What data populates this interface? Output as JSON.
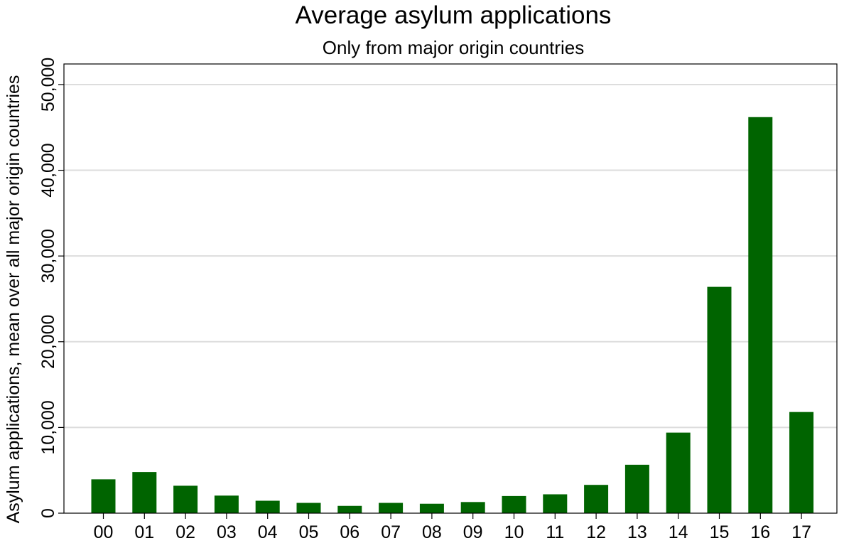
{
  "chart_data": {
    "type": "bar",
    "title": "Average asylum applications",
    "subtitle": "Only from major origin countries",
    "xlabel": "",
    "ylabel": "Asylum applications, mean over all major origin countries",
    "categories": [
      "00",
      "01",
      "02",
      "03",
      "04",
      "05",
      "06",
      "07",
      "08",
      "09",
      "10",
      "11",
      "12",
      "13",
      "14",
      "15",
      "16",
      "17"
    ],
    "values": [
      3950,
      4800,
      3200,
      2050,
      1450,
      1200,
      850,
      1200,
      1100,
      1300,
      2000,
      2200,
      3300,
      5650,
      9400,
      26400,
      46200,
      11800
    ],
    "ylim": [
      0,
      52400
    ],
    "yticks": [
      0,
      10000,
      20000,
      30000,
      40000,
      50000
    ],
    "ytick_labels": [
      "0",
      "10,000",
      "20,000",
      "30,000",
      "40,000",
      "50,000"
    ],
    "grid": true,
    "bar_color": "#006400",
    "grid_color": "#dddddd"
  }
}
